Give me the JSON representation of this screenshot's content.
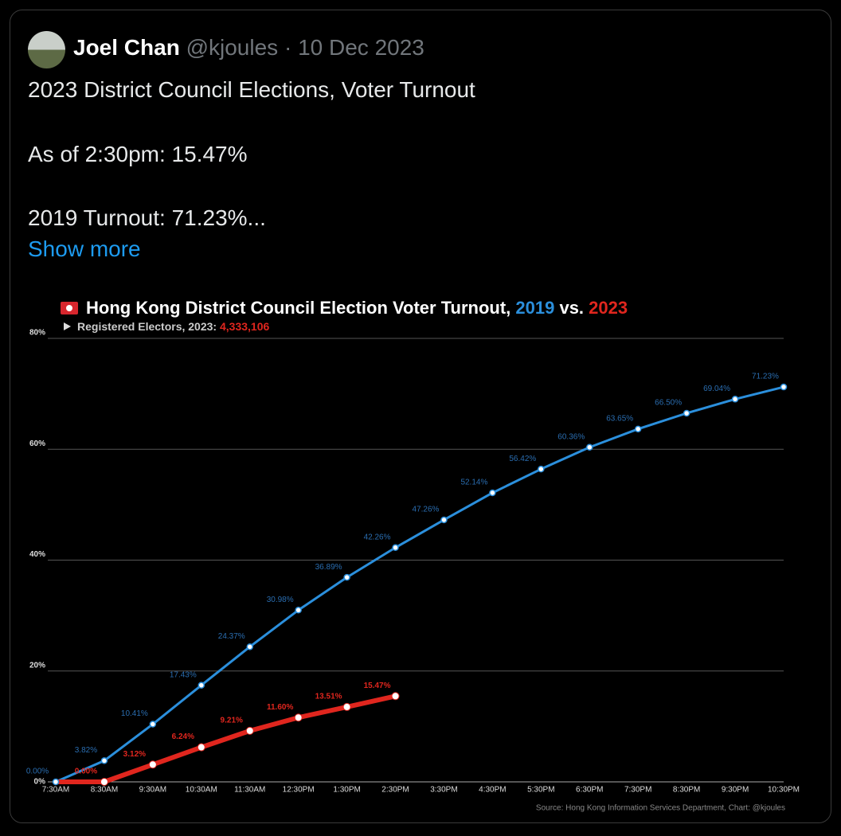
{
  "tweet": {
    "author": "Joel Chan",
    "handle": "@kjoules",
    "separator": "·",
    "date": "10 Dec 2023",
    "text": [
      "2023 District Council Elections, Voter Turnout",
      "As of 2:30pm: 15.47%",
      "2019 Turnout: 71.23%..."
    ],
    "show_more": "Show more"
  },
  "chart_data": {
    "type": "line",
    "title": [
      "Hong Kong District Council Election Voter Turnout, ",
      "2019",
      " vs. ",
      "2023"
    ],
    "subtitle": [
      "Registered Electors, 2023: ",
      "4,333,106"
    ],
    "source": "Source: Hong Kong Information Services Department, Chart: @kjoules",
    "categories": [
      "7:30AM",
      "8:30AM",
      "9:30AM",
      "10:30AM",
      "11:30AM",
      "12:30PM",
      "1:30PM",
      "2:30PM",
      "3:30PM",
      "4:30PM",
      "5:30PM",
      "6:30PM",
      "7:30PM",
      "8:30PM",
      "9:30PM",
      "10:30PM"
    ],
    "series": [
      {
        "name": "2019",
        "color": "#2b8fdc",
        "label_color": "#2a6db0",
        "values": [
          0,
          3.82,
          10.41,
          17.43,
          24.37,
          30.98,
          36.89,
          42.26,
          47.26,
          52.14,
          56.42,
          60.36,
          63.65,
          66.5,
          69.04,
          71.23
        ],
        "value_labels": [
          "0.00%",
          "3.82%",
          "10.41%",
          "17.43%",
          "24.37%",
          "30.98%",
          "36.89%",
          "42.26%",
          "47.26%",
          "52.14%",
          "56.42%",
          "60.36%",
          "63.65%",
          "66.50%",
          "69.04%",
          "71.23%"
        ]
      },
      {
        "name": "2023",
        "color": "#e0261e",
        "label_color": "#e0261e",
        "values": [
          0,
          0,
          3.12,
          6.24,
          9.21,
          11.6,
          13.51,
          15.47,
          null,
          null,
          null,
          null,
          null,
          null,
          null,
          null
        ],
        "value_labels": [
          null,
          "0.00%",
          "3.12%",
          "6.24%",
          "9.21%",
          "11.60%",
          "13.51%",
          "15.47%",
          null,
          null,
          null,
          null,
          null,
          null,
          null,
          null
        ]
      }
    ],
    "ylim": [
      0,
      80
    ],
    "yticks": [
      {
        "value": 0,
        "label": "0%"
      },
      {
        "value": 20,
        "label": "20%"
      },
      {
        "value": 40,
        "label": "40%"
      },
      {
        "value": 60,
        "label": "60%"
      },
      {
        "value": 80,
        "label": "80%"
      }
    ],
    "grid": true
  }
}
